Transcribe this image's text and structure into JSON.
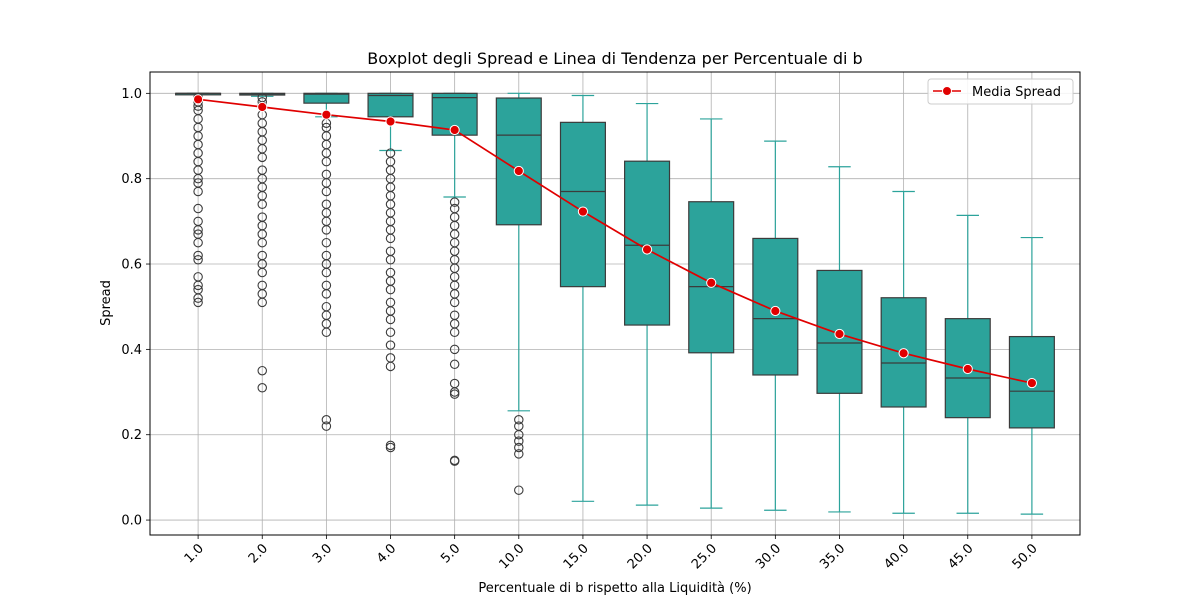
{
  "chart_data": {
    "type": "box",
    "title": "Boxplot degli Spread e Linea di Tendenza per Percentuale di b",
    "xlabel": "Percentuale di b rispetto alla Liquidità (%)",
    "ylabel": "Spread",
    "categories": [
      "1.0",
      "2.0",
      "3.0",
      "4.0",
      "5.0",
      "10.0",
      "15.0",
      "20.0",
      "25.0",
      "30.0",
      "35.0",
      "40.0",
      "45.0",
      "50.0"
    ],
    "ylim": [
      -0.035,
      1.05
    ],
    "yticks": [
      "0.0",
      "0.2",
      "0.4",
      "0.6",
      "0.8",
      "1.0"
    ],
    "grid": true,
    "legend_position": "top-right",
    "box_color": "#2ca39b",
    "box_edge_color": "#3b3b3b",
    "whisker_color": "#2ca39b",
    "line_color": "#e00000",
    "boxes": [
      {
        "q1": 0.999,
        "median": 1.0,
        "q3": 1.0,
        "whislo": 0.998,
        "whishi": 1.0,
        "outliers": [
          0.51,
          0.52,
          0.54,
          0.55,
          0.57,
          0.61,
          0.62,
          0.65,
          0.67,
          0.68,
          0.7,
          0.73,
          0.77,
          0.79,
          0.8,
          0.82,
          0.84,
          0.86,
          0.88,
          0.9,
          0.92,
          0.94,
          0.96,
          0.97,
          0.98,
          0.99
        ]
      },
      {
        "q1": 0.996,
        "median": 0.999,
        "q3": 1.0,
        "whislo": 0.993,
        "whishi": 1.0,
        "outliers": [
          0.31,
          0.35,
          0.51,
          0.53,
          0.55,
          0.58,
          0.6,
          0.62,
          0.65,
          0.67,
          0.69,
          0.71,
          0.74,
          0.76,
          0.78,
          0.8,
          0.82,
          0.85,
          0.87,
          0.89,
          0.91,
          0.93,
          0.95,
          0.97,
          0.98,
          0.99
        ]
      },
      {
        "q1": 0.977,
        "median": 0.998,
        "q3": 1.0,
        "whislo": 0.945,
        "whishi": 1.0,
        "outliers": [
          0.22,
          0.235,
          0.44,
          0.46,
          0.48,
          0.5,
          0.53,
          0.55,
          0.58,
          0.6,
          0.62,
          0.65,
          0.68,
          0.7,
          0.72,
          0.74,
          0.77,
          0.79,
          0.81,
          0.84,
          0.86,
          0.88,
          0.9,
          0.92,
          0.93
        ]
      },
      {
        "q1": 0.945,
        "median": 0.995,
        "q3": 1.0,
        "whislo": 0.866,
        "whishi": 1.0,
        "outliers": [
          0.17,
          0.175,
          0.36,
          0.38,
          0.41,
          0.44,
          0.47,
          0.49,
          0.51,
          0.54,
          0.56,
          0.58,
          0.61,
          0.63,
          0.66,
          0.68,
          0.7,
          0.72,
          0.74,
          0.76,
          0.78,
          0.8,
          0.82,
          0.84,
          0.86
        ]
      },
      {
        "q1": 0.902,
        "median": 0.99,
        "q3": 1.0,
        "whislo": 0.757,
        "whishi": 1.0,
        "outliers": [
          0.138,
          0.14,
          0.295,
          0.3,
          0.32,
          0.365,
          0.4,
          0.44,
          0.46,
          0.48,
          0.51,
          0.53,
          0.55,
          0.57,
          0.59,
          0.61,
          0.63,
          0.65,
          0.67,
          0.69,
          0.71,
          0.73,
          0.745
        ]
      },
      {
        "q1": 0.692,
        "median": 0.902,
        "q3": 0.989,
        "whislo": 0.256,
        "whishi": 1.0,
        "outliers": [
          0.07,
          0.155,
          0.17,
          0.185,
          0.2,
          0.22,
          0.235
        ]
      },
      {
        "q1": 0.547,
        "median": 0.77,
        "q3": 0.932,
        "whislo": 0.044,
        "whishi": 0.995,
        "outliers": []
      },
      {
        "q1": 0.457,
        "median": 0.644,
        "q3": 0.841,
        "whislo": 0.035,
        "whishi": 0.976,
        "outliers": []
      },
      {
        "q1": 0.392,
        "median": 0.547,
        "q3": 0.746,
        "whislo": 0.028,
        "whishi": 0.94,
        "outliers": []
      },
      {
        "q1": 0.34,
        "median": 0.472,
        "q3": 0.66,
        "whislo": 0.023,
        "whishi": 0.888,
        "outliers": []
      },
      {
        "q1": 0.297,
        "median": 0.415,
        "q3": 0.585,
        "whislo": 0.019,
        "whishi": 0.828,
        "outliers": []
      },
      {
        "q1": 0.265,
        "median": 0.368,
        "q3": 0.521,
        "whislo": 0.016,
        "whishi": 0.77,
        "outliers": []
      },
      {
        "q1": 0.24,
        "median": 0.333,
        "q3": 0.472,
        "whislo": 0.016,
        "whishi": 0.714,
        "outliers": []
      },
      {
        "q1": 0.216,
        "median": 0.302,
        "q3": 0.43,
        "whislo": 0.014,
        "whishi": 0.662,
        "outliers": []
      }
    ],
    "series": [
      {
        "name": "Media Spread",
        "type": "line",
        "values": [
          0.986,
          0.968,
          0.95,
          0.934,
          0.914,
          0.818,
          0.723,
          0.634,
          0.556,
          0.49,
          0.436,
          0.391,
          0.354,
          0.321
        ]
      }
    ]
  }
}
